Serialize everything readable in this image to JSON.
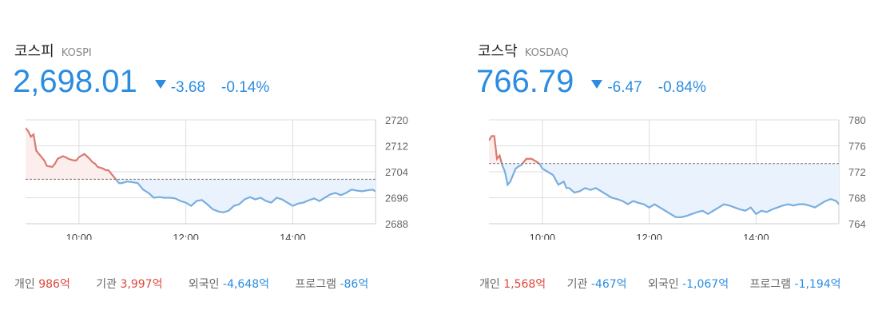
{
  "colors": {
    "up": "#e0453a",
    "down": "#2b8ce0",
    "line_up": "#d97a70",
    "line_down": "#7aaede",
    "fill_up": "#fdeeee",
    "fill_down": "#eaf3fd"
  },
  "chart_data": [
    {
      "type": "line",
      "name": "코스피",
      "code": "KOSPI",
      "value": "2,698.01",
      "change": "-3.68",
      "change_pct": "-0.14%",
      "direction": "down",
      "prev_close": 2701.69,
      "ylim": [
        2688,
        2720
      ],
      "yticks": [
        "2720",
        "2712",
        "2704",
        "2696",
        "2688"
      ],
      "xticks": [
        "10:00",
        "12:00",
        "14:00"
      ],
      "xlim": [
        9.0,
        15.55
      ],
      "x": [
        9.0,
        9.05,
        9.1,
        9.15,
        9.2,
        9.25,
        9.3,
        9.35,
        9.4,
        9.5,
        9.55,
        9.6,
        9.7,
        9.75,
        9.8,
        9.9,
        9.95,
        10.0,
        10.05,
        10.1,
        10.2,
        10.25,
        10.3,
        10.35,
        10.45,
        10.5,
        10.55,
        10.6,
        10.7,
        10.75,
        10.8,
        10.9,
        11.0,
        11.1,
        11.2,
        11.3,
        11.4,
        11.5,
        11.6,
        11.7,
        11.8,
        11.9,
        12.0,
        12.1,
        12.2,
        12.3,
        12.4,
        12.5,
        12.6,
        12.7,
        12.8,
        12.9,
        13.0,
        13.1,
        13.2,
        13.3,
        13.4,
        13.5,
        13.6,
        13.7,
        13.8,
        13.9,
        14.0,
        14.1,
        14.2,
        14.3,
        14.4,
        14.5,
        14.6,
        14.7,
        14.8,
        14.9,
        15.0,
        15.1,
        15.2,
        15.3,
        15.4,
        15.5,
        15.55
      ],
      "values": [
        2717.5,
        2716.5,
        2714.8,
        2715.5,
        2710.5,
        2709.5,
        2708.5,
        2707.5,
        2705.8,
        2705.5,
        2706.5,
        2708.0,
        2708.8,
        2708.5,
        2708.0,
        2707.5,
        2707.5,
        2708.5,
        2709.0,
        2709.5,
        2708.0,
        2707.0,
        2706.5,
        2705.5,
        2705.0,
        2704.5,
        2704.5,
        2703.5,
        2701.5,
        2700.5,
        2700.5,
        2701.0,
        2700.8,
        2700.5,
        2698.5,
        2697.5,
        2696.0,
        2696.2,
        2696.0,
        2696.0,
        2695.8,
        2695.0,
        2694.5,
        2693.5,
        2695.0,
        2695.3,
        2694.0,
        2692.5,
        2691.8,
        2691.5,
        2692.0,
        2693.5,
        2694.0,
        2695.5,
        2696.2,
        2695.5,
        2696.0,
        2695.0,
        2694.5,
        2696.0,
        2695.5,
        2694.5,
        2693.5,
        2694.2,
        2694.5,
        2695.2,
        2695.8,
        2695.0,
        2696.0,
        2697.0,
        2697.5,
        2696.8,
        2697.5,
        2698.5,
        2698.2,
        2698.0,
        2698.3,
        2698.5,
        2698.0
      ]
    },
    {
      "type": "line",
      "name": "코스닥",
      "code": "KOSDAQ",
      "value": "766.79",
      "change": "-6.47",
      "change_pct": "-0.84%",
      "direction": "down",
      "prev_close": 773.26,
      "ylim": [
        764,
        780
      ],
      "yticks": [
        "780",
        "776",
        "772",
        "768",
        "764"
      ],
      "xticks": [
        "10:00",
        "12:00",
        "14:00"
      ],
      "xlim": [
        9.0,
        15.55
      ],
      "x": [
        9.0,
        9.05,
        9.1,
        9.15,
        9.2,
        9.25,
        9.3,
        9.35,
        9.4,
        9.5,
        9.55,
        9.6,
        9.7,
        9.75,
        9.8,
        9.9,
        9.95,
        10.0,
        10.1,
        10.2,
        10.3,
        10.4,
        10.45,
        10.5,
        10.6,
        10.7,
        10.8,
        10.9,
        11.0,
        11.1,
        11.2,
        11.3,
        11.4,
        11.5,
        11.6,
        11.7,
        11.8,
        11.9,
        12.0,
        12.1,
        12.2,
        12.3,
        12.4,
        12.5,
        12.6,
        12.7,
        12.8,
        12.9,
        13.0,
        13.1,
        13.2,
        13.3,
        13.4,
        13.5,
        13.6,
        13.7,
        13.8,
        13.9,
        14.0,
        14.1,
        14.2,
        14.3,
        14.4,
        14.5,
        14.6,
        14.7,
        14.8,
        14.9,
        15.0,
        15.1,
        15.2,
        15.3,
        15.4,
        15.5,
        15.55
      ],
      "values": [
        776.8,
        777.5,
        777.5,
        774.0,
        774.5,
        773.0,
        772.0,
        770.0,
        770.5,
        772.5,
        772.8,
        773.0,
        774.0,
        774.0,
        774.0,
        773.5,
        773.2,
        772.5,
        772.0,
        771.5,
        770.0,
        770.5,
        769.5,
        769.5,
        768.8,
        769.0,
        769.5,
        769.2,
        769.5,
        769.0,
        768.5,
        768.0,
        767.8,
        767.5,
        767.0,
        767.5,
        767.2,
        767.0,
        766.5,
        767.0,
        766.5,
        766.0,
        765.5,
        765.0,
        765.0,
        765.2,
        765.5,
        765.8,
        766.0,
        765.5,
        766.0,
        766.5,
        767.0,
        766.8,
        766.5,
        766.2,
        766.0,
        766.5,
        765.5,
        766.0,
        765.8,
        766.2,
        766.5,
        766.8,
        767.0,
        766.8,
        767.0,
        767.0,
        766.8,
        766.5,
        767.0,
        767.5,
        767.8,
        767.5,
        767.0
      ]
    }
  ],
  "panels": [
    {
      "investors": [
        {
          "label": "개인",
          "value": "986억",
          "sign": "pos"
        },
        {
          "label": "기관",
          "value": "3,997억",
          "sign": "pos"
        },
        {
          "label": "외국인",
          "value": "-4,648억",
          "sign": "neg"
        },
        {
          "label": "프로그램",
          "value": "-86억",
          "sign": "neg"
        }
      ]
    },
    {
      "investors": [
        {
          "label": "개인",
          "value": "1,568억",
          "sign": "pos"
        },
        {
          "label": "기관",
          "value": "-467억",
          "sign": "neg"
        },
        {
          "label": "외국인",
          "value": "-1,067억",
          "sign": "neg"
        },
        {
          "label": "프로그램",
          "value": "-1,194억",
          "sign": "neg"
        }
      ]
    }
  ]
}
